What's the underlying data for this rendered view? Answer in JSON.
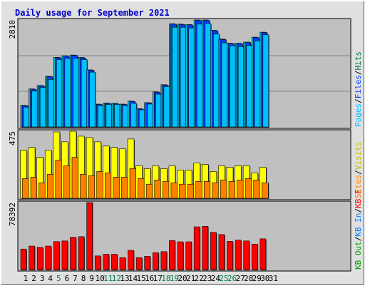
{
  "title": "Daily usage for September 2021",
  "chart_data": {
    "type": "bar",
    "title": "Daily usage for September 2021",
    "categories": [
      "1",
      "2",
      "3",
      "4",
      "5",
      "6",
      "7",
      "8",
      "9",
      "10",
      "11",
      "12",
      "13",
      "14",
      "15",
      "16",
      "17",
      "18",
      "19",
      "20",
      "21",
      "22",
      "23",
      "24",
      "25",
      "26",
      "27",
      "28",
      "29",
      "30",
      "31"
    ],
    "weekend_days": [
      "5",
      "11",
      "12",
      "18",
      "19",
      "25",
      "26"
    ],
    "panels": [
      {
        "name": "top",
        "ymax_label": "2810",
        "ymax": 2810,
        "legend": [
          {
            "text": "Hits",
            "color": "#008040"
          },
          {
            "text": "Files",
            "color": "#0040ff"
          },
          {
            "text": "Pages",
            "color": "#00c0ff"
          }
        ],
        "series": [
          {
            "name": "Hits",
            "color": "#00c0d0",
            "values": [
              570,
              1000,
              1090,
              1330,
              1830,
              1870,
              1890,
              1830,
              1500,
              600,
              630,
              620,
              600,
              680,
              480,
              640,
              920,
              1110,
              2710,
              2700,
              2690,
              2810,
              2810,
              2540,
              2310,
              2200,
              2200,
              2230,
              2360,
              2490,
              0
            ]
          },
          {
            "name": "Files",
            "color": "#0040ff",
            "values": [
              560,
              990,
              1080,
              1320,
              1820,
              1860,
              1880,
              1810,
              1490,
              590,
              620,
              610,
              590,
              670,
              470,
              630,
              910,
              1100,
              2700,
              2690,
              2680,
              2800,
              2800,
              2530,
              2300,
              2190,
              2190,
              2220,
              2350,
              2480,
              0
            ]
          },
          {
            "name": "Pages",
            "color": "#00c0ff",
            "values": [
              520,
              940,
              1040,
              1250,
              1770,
              1800,
              1800,
              1770,
              1440,
              560,
              590,
              590,
              560,
              620,
              450,
              600,
              860,
              1060,
              2620,
              2620,
              2600,
              2700,
              2720,
              2440,
              2210,
              2130,
              2110,
              2140,
              2260,
              2420,
              0
            ]
          }
        ]
      },
      {
        "name": "middle",
        "ymax_label": "475",
        "ymax": 475,
        "legend": [
          {
            "text": "Visits",
            "color": "#c0c000"
          },
          {
            "text": "Sites",
            "color": "#ff8000"
          }
        ],
        "series": [
          {
            "name": "Visits",
            "color": "#ffff00",
            "values": [
              340,
              360,
              290,
              340,
              470,
              400,
              475,
              440,
              430,
              400,
              370,
              360,
              350,
              420,
              230,
              210,
              230,
              210,
              230,
              200,
              200,
              250,
              240,
              190,
              230,
              220,
              230,
              230,
              180,
              220,
              0
            ]
          },
          {
            "name": "Sites",
            "color": "#ff8000",
            "values": [
              140,
              150,
              110,
              170,
              270,
              230,
              290,
              170,
              160,
              190,
              180,
              150,
              150,
              210,
              140,
              100,
              130,
              120,
              110,
              100,
              100,
              120,
              120,
              110,
              130,
              120,
              130,
              140,
              130,
              110,
              0
            ]
          }
        ]
      },
      {
        "name": "bottom",
        "ymax_label": "78392",
        "ymax": 78392,
        "legend": [
          {
            "text": "KB F",
            "color": "#ff0000"
          },
          {
            "text": "KB In",
            "color": "#0080ff"
          },
          {
            "text": "KB Out",
            "color": "#00a000"
          }
        ],
        "series": [
          {
            "name": "KB F",
            "color": "#ff0000",
            "values": [
              24000,
              27500,
              26000,
              27500,
              32700,
              33500,
              37800,
              38500,
              78392,
              16000,
              17900,
              17900,
              14000,
              22500,
              14000,
              15500,
              19800,
              21000,
              34000,
              32500,
              32500,
              50000,
              50600,
              43500,
              41000,
              33000,
              34500,
              33500,
              29800,
              36000,
              0
            ]
          }
        ]
      }
    ]
  }
}
